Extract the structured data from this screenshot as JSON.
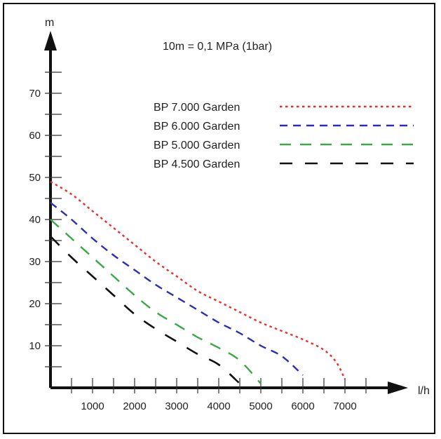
{
  "chart_data": {
    "type": "line",
    "annotation": "10m = 0,1 MPa (1bar)",
    "xlabel": "l/h",
    "ylabel": "m",
    "xlim": [
      0,
      8000
    ],
    "ylim": [
      0,
      80
    ],
    "x_tick_labels": [
      "1000",
      "2000",
      "3000",
      "4000",
      "5000",
      "6000",
      "7000"
    ],
    "y_tick_labels": [
      "10",
      "20",
      "30",
      "40",
      "50",
      "60",
      "70"
    ],
    "grid": false,
    "legend_position": "top-right",
    "series": [
      {
        "name": "BP 7.000 Garden",
        "color": "#e8302a",
        "dash": "dotted",
        "points": [
          [
            0,
            49
          ],
          [
            500,
            46
          ],
          [
            1000,
            42
          ],
          [
            1500,
            38
          ],
          [
            2000,
            34
          ],
          [
            2500,
            30
          ],
          [
            3000,
            26.5
          ],
          [
            3500,
            23
          ],
          [
            4000,
            20.5
          ],
          [
            4500,
            18
          ],
          [
            5000,
            15.5
          ],
          [
            5500,
            13.5
          ],
          [
            6000,
            11.5
          ],
          [
            6500,
            9
          ],
          [
            6800,
            6
          ],
          [
            7000,
            2
          ]
        ]
      },
      {
        "name": "BP 6.000 Garden",
        "color": "#2c2fb0",
        "dash": "dashed",
        "points": [
          [
            0,
            44
          ],
          [
            500,
            40
          ],
          [
            1000,
            35.5
          ],
          [
            1500,
            31.5
          ],
          [
            2000,
            28
          ],
          [
            2500,
            24.5
          ],
          [
            3000,
            21.5
          ],
          [
            3500,
            18.5
          ],
          [
            4000,
            15.5
          ],
          [
            4500,
            13
          ],
          [
            5000,
            10
          ],
          [
            5500,
            7.5
          ],
          [
            6000,
            3
          ]
        ]
      },
      {
        "name": "BP 5.000 Garden",
        "color": "#3aa845",
        "dash": "long-dashed",
        "points": [
          [
            0,
            40
          ],
          [
            500,
            35.5
          ],
          [
            1000,
            31
          ],
          [
            1500,
            26.5
          ],
          [
            2000,
            22
          ],
          [
            2500,
            18
          ],
          [
            3000,
            15
          ],
          [
            3500,
            12
          ],
          [
            4000,
            9.5
          ],
          [
            4500,
            6.5
          ],
          [
            5000,
            1
          ]
        ]
      },
      {
        "name": "BP 4.500 Garden",
        "color": "#111111",
        "dash": "long-dashed",
        "points": [
          [
            0,
            36
          ],
          [
            500,
            31
          ],
          [
            1000,
            26.5
          ],
          [
            1500,
            22
          ],
          [
            2000,
            17.5
          ],
          [
            2500,
            14
          ],
          [
            3000,
            11
          ],
          [
            3500,
            8
          ],
          [
            4000,
            5.5
          ],
          [
            4500,
            1
          ]
        ]
      }
    ]
  }
}
